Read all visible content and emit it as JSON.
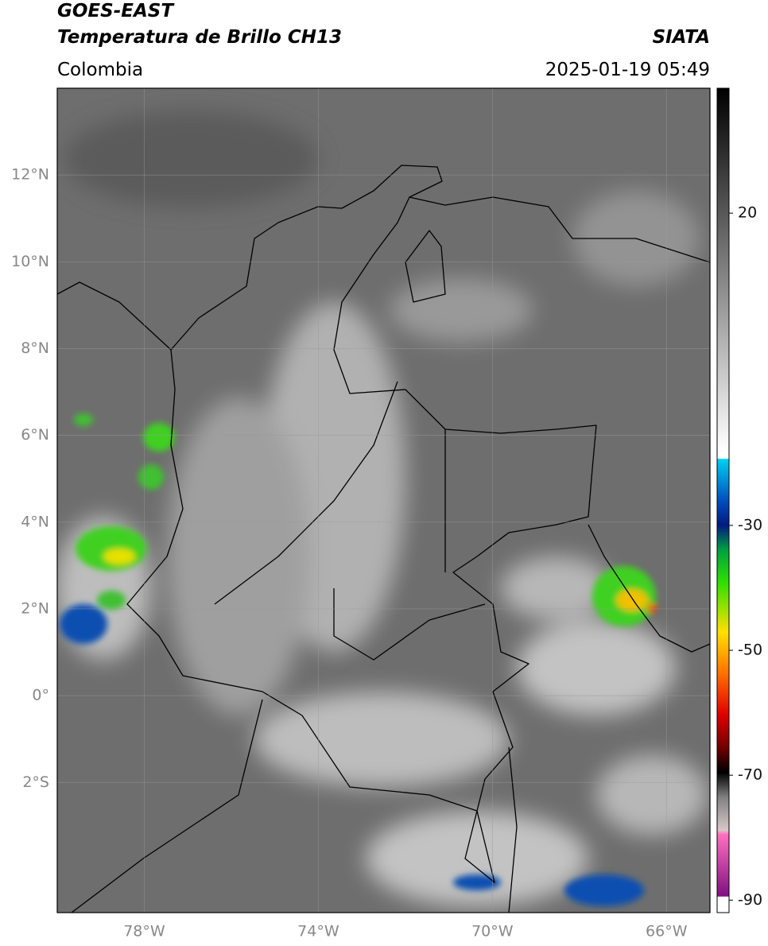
{
  "header": {
    "title": "GOES-EAST",
    "subtitle": "Temperatura de Brillo CH13",
    "source": "SIATA",
    "region": "Colombia",
    "datetime": "2025-01-19 05:49"
  },
  "map": {
    "lon_range": [
      -80,
      -65
    ],
    "lat_range": [
      14,
      -5
    ],
    "lat_ticks": [
      {
        "value": 12,
        "label": "12°N"
      },
      {
        "value": 10,
        "label": "10°N"
      },
      {
        "value": 8,
        "label": "8°N"
      },
      {
        "value": 6,
        "label": "6°N"
      },
      {
        "value": 4,
        "label": "4°N"
      },
      {
        "value": 2,
        "label": "2°N"
      },
      {
        "value": 0,
        "label": "0°"
      },
      {
        "value": -2,
        "label": "2°S"
      }
    ],
    "lon_ticks": [
      {
        "value": -78,
        "label": "78°W"
      },
      {
        "value": -74,
        "label": "74°W"
      },
      {
        "value": -70,
        "label": "70°W"
      },
      {
        "value": -66,
        "label": "66°W"
      }
    ]
  },
  "colorbar": {
    "range": [
      40,
      -92
    ],
    "ticks": [
      20,
      -30,
      -50,
      -70,
      -90
    ]
  }
}
